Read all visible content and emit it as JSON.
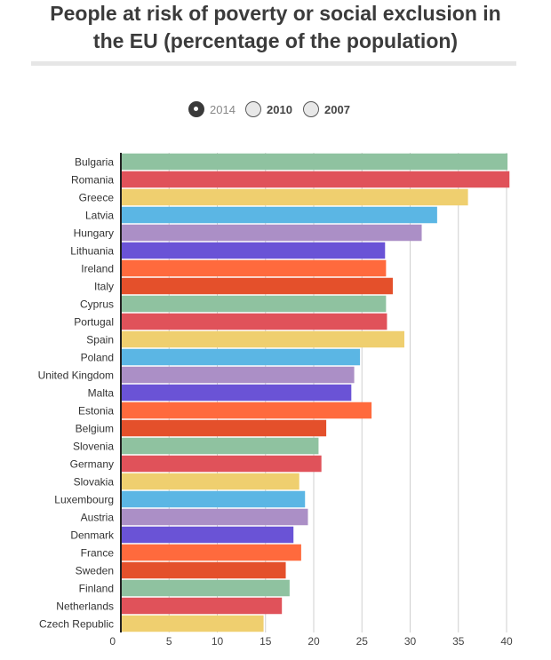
{
  "title": "People at risk of poverty or social exclusion in the EU (percentage of the population)",
  "title_line1": "People at risk of poverty or social exclusion in",
  "title_line2": "the EU (percentage of the population)",
  "legend": {
    "options": [
      "2014",
      "2010",
      "2007"
    ],
    "selected": "2014"
  },
  "chart_data": {
    "type": "bar",
    "orientation": "horizontal",
    "title": "People at risk of poverty or social exclusion in the EU (percentage of the population)",
    "xlabel": "",
    "ylabel": "",
    "xlim": [
      0,
      40
    ],
    "xticks": [
      0,
      5,
      10,
      15,
      20,
      25,
      30,
      35,
      40
    ],
    "grid": true,
    "categories": [
      "Bulgaria",
      "Romania",
      "Greece",
      "Latvia",
      "Hungary",
      "Lithuania",
      "Ireland",
      "Italy",
      "Cyprus",
      "Portugal",
      "Spain",
      "Poland",
      "United Kingdom",
      "Malta",
      "Estonia",
      "Belgium",
      "Slovenia",
      "Germany",
      "Slovakia",
      "Luxembourg",
      "Austria",
      "Denmark",
      "France",
      "Sweden",
      "Finland",
      "Netherlands",
      "Czech Republic"
    ],
    "series": [
      {
        "values": [
          40.1,
          40.3,
          36.0,
          32.8,
          31.2,
          27.4,
          27.5,
          28.2,
          27.5,
          27.6,
          29.4,
          24.8,
          24.2,
          23.9,
          26.0,
          21.3,
          20.5,
          20.8,
          18.5,
          19.1,
          19.4,
          17.9,
          18.7,
          17.1,
          17.5,
          16.7,
          14.8
        ]
      }
    ],
    "palette": [
      "#8fc2a0",
      "#e0525a",
      "#efcf6f",
      "#5bb6e4",
      "#ab8fc6",
      "#6a53d6",
      "#ff6a3d",
      "#e4502b"
    ]
  }
}
